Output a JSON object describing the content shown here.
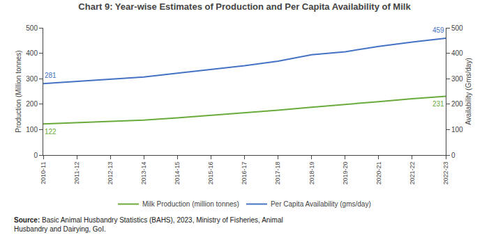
{
  "chart_data": {
    "type": "line",
    "title": "Chart 9: Year-wise Estimates of Production and Per Capita Availability of Milk",
    "categories": [
      "2010-11",
      "2011-12",
      "2012-13",
      "2013-14",
      "2014-15",
      "2015-16",
      "2016-17",
      "2017-18",
      "2018-19",
      "2019-20",
      "2020-21",
      "2021-22",
      "2022-23"
    ],
    "series": [
      {
        "name": "Milk Production (million tonnes)",
        "color": "#6aaa3a",
        "values": [
          122,
          127,
          132,
          137,
          146,
          156,
          165,
          176,
          188,
          198,
          210,
          221,
          231
        ]
      },
      {
        "name": "Per Capita Availability (gms/day)",
        "color": "#4472c4",
        "axis": "y2",
        "values": [
          281,
          290,
          299,
          307,
          322,
          337,
          351,
          369,
          394,
          406,
          427,
          444,
          459
        ]
      }
    ],
    "ylabel": "Production (Million tonnes)",
    "y2label": "Availability (Gms/day)",
    "ylim": [
      0,
      500
    ],
    "yticks": [
      0,
      100,
      200,
      300,
      400,
      500
    ],
    "y2lim": [
      0,
      500
    ],
    "y2ticks": [
      0,
      100,
      200,
      300,
      400,
      500
    ],
    "grid": false,
    "legend": "bottom",
    "annotations": [
      {
        "text": "122",
        "x": "2010-11",
        "y": 122,
        "axis": "y"
      },
      {
        "text": "231",
        "x": "2022-23",
        "y": 231,
        "axis": "y"
      },
      {
        "text": "281",
        "x": "2010-11",
        "y": 281,
        "axis": "y2"
      },
      {
        "text": "459",
        "x": "2022-23",
        "y": 459,
        "axis": "y2"
      }
    ],
    "source": {
      "label": "Source:",
      "text": "Basic Animal Husbandry Statistics (BAHS), 2023, Ministry of Fisheries, Animal\nHusbandry and Dairying, GoI."
    }
  }
}
